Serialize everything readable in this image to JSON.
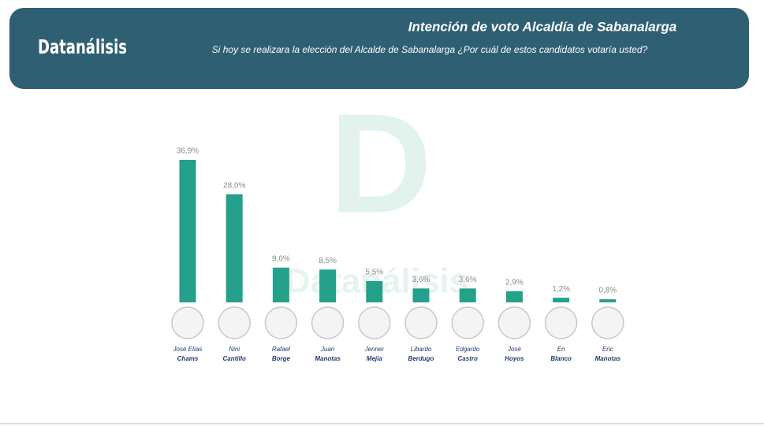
{
  "header": {
    "brand": "Datanálisis"
  },
  "watermark": {
    "letter": "D",
    "text": "Datanálisis"
  },
  "chart_data": {
    "type": "bar",
    "title": "Intención de voto Alcaldía de Sabanalarga",
    "subtitle": "Si hoy se realizara la elección del Alcalde de Sabanalarga ¿Por cuál de estos candidatos votaría usted?",
    "categories": [
      [
        "José Elías",
        "Chams"
      ],
      [
        "Nini",
        "Cantillo"
      ],
      [
        "Rafael",
        "Borge"
      ],
      [
        "Juan",
        "Manotas"
      ],
      [
        "Jenner",
        "Mejía"
      ],
      [
        "Libardo",
        "Berdugo"
      ],
      [
        "Edgardo",
        "Castro"
      ],
      [
        "José",
        "Hoyos"
      ],
      [
        "En",
        "Blanco"
      ],
      [
        "Eric",
        "Manotas"
      ]
    ],
    "values": [
      36.9,
      28.0,
      9.0,
      8.5,
      5.5,
      3.6,
      3.6,
      2.9,
      1.2,
      0.8
    ],
    "value_labels": [
      "36,9%",
      "28,0%",
      "9,0%",
      "8,5%",
      "5,5%",
      "3,6%",
      "3,6%",
      "2,9%",
      "1,2%",
      "0,8%"
    ],
    "color": "#25a08a"
  }
}
